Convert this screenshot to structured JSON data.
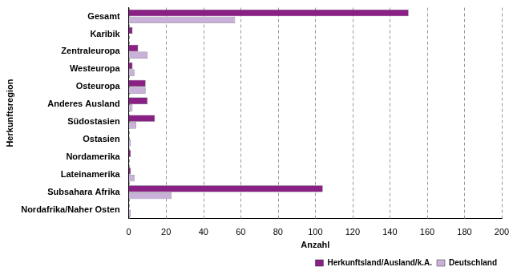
{
  "chart_data": {
    "type": "bar",
    "orientation": "horizontal",
    "x_label": "Anzahl",
    "y_label": "Herkunftsregion",
    "categories": [
      "Gesamt",
      "Karibik",
      "Zentraleuropa",
      "Westeuropa",
      "Osteuropa",
      "Anderes Ausland",
      "Südostasien",
      "Ostasien",
      "Nordamerika",
      "Lateinamerika",
      "Subsahara Afrika",
      "Nordafrika/Naher Osten"
    ],
    "series": [
      {
        "name": "Herkunftsland/Ausland/k.A.",
        "color": "#8a1f86",
        "values": [
          150,
          2,
          5,
          2,
          9,
          10,
          14,
          0,
          1,
          1,
          104,
          0
        ]
      },
      {
        "name": "Deutschland",
        "color": "#c9b1d9",
        "values": [
          57,
          0,
          10,
          3,
          9,
          2,
          4,
          1,
          0,
          3,
          23,
          1
        ]
      }
    ],
    "xlim": [
      0,
      200
    ],
    "xticks": [
      0,
      20,
      40,
      60,
      80,
      100,
      120,
      140,
      160,
      180,
      200
    ],
    "grid": true,
    "legend": "lower right"
  }
}
